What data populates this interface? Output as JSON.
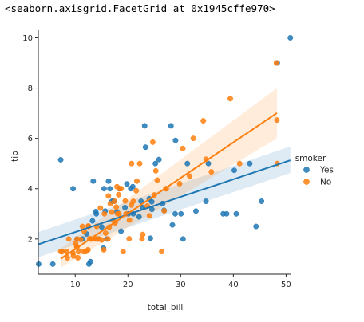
{
  "output_text": "<seaborn.axisgrid.FacetGrid at 0x1945cffe970>",
  "chart_data": {
    "type": "scatter",
    "xlabel": "total_bill",
    "ylabel": "tip",
    "xlim": [
      3,
      51
    ],
    "ylim": [
      0.6,
      10.3
    ],
    "xticks": [
      10,
      20,
      30,
      40,
      50
    ],
    "yticks": [
      2,
      4,
      6,
      8,
      10
    ],
    "grid": false,
    "legend": {
      "title": "smoker",
      "placement": "right",
      "entries": [
        "Yes",
        "No"
      ]
    },
    "colors": {
      "Yes": "#1f77b4",
      "No": "#ff7f0e"
    },
    "series": [
      {
        "name": "Yes",
        "regression": {
          "x": [
            3.07,
            50.81
          ],
          "y": [
            1.79,
            5.13
          ]
        },
        "ci": {
          "x": [
            3.07,
            50.81
          ],
          "lower": [
            1.28,
            4.62
          ],
          "upper": [
            2.28,
            5.68
          ]
        },
        "x": [
          3.07,
          5.75,
          7.25,
          9.6,
          10.34,
          11.38,
          12.16,
          12.9,
          13.28,
          13.9,
          14.0,
          14.31,
          15.02,
          15.36,
          15.69,
          16.0,
          16.58,
          16.97,
          17.31,
          17.92,
          18.69,
          19.44,
          19.81,
          20.08,
          20.53,
          21.01,
          22.12,
          22.49,
          22.76,
          23.17,
          23.33,
          24.06,
          24.27,
          24.55,
          25.21,
          25.89,
          26.86,
          28.17,
          28.44,
          29.03,
          30.06,
          30.46,
          31.27,
          32.9,
          34.81,
          35.26,
          38.07,
          38.73,
          40.17,
          40.55,
          43.11,
          44.3,
          45.35,
          48.33,
          50.81,
          16.32,
          13.42,
          12.6,
          15.48,
          28.97,
          18.35,
          20.92,
          26.59,
          24.52
        ],
        "y": [
          1.0,
          1.0,
          5.15,
          4.0,
          2.0,
          2.0,
          2.2,
          1.1,
          2.72,
          3.09,
          3.0,
          2.0,
          2.48,
          1.64,
          3.11,
          2.0,
          4.0,
          3.5,
          3.5,
          3.08,
          2.31,
          3.25,
          4.19,
          3.0,
          4.0,
          3.0,
          2.88,
          3.5,
          3.25,
          6.5,
          5.65,
          3.6,
          2.03,
          3.18,
          5.0,
          5.16,
          3.14,
          6.5,
          2.56,
          5.92,
          3.0,
          2.0,
          5.0,
          3.11,
          3.5,
          5.0,
          3.0,
          3.0,
          4.73,
          3.0,
          5.0,
          2.5,
          3.5,
          9.0,
          10.0,
          4.3,
          4.3,
          1.0,
          4.0,
          3.0,
          4.0,
          4.08,
          3.41,
          3.48
        ]
      },
      {
        "name": "No",
        "regression": {
          "x": [
            7.25,
            48.27
          ],
          "y": [
            1.21,
            7.01
          ]
        },
        "ci": {
          "x": [
            7.25,
            48.27
          ],
          "lower": [
            0.86,
            6.0
          ],
          "upper": [
            1.62,
            8.0
          ]
        },
        "x": [
          7.25,
          7.51,
          8.35,
          8.51,
          8.77,
          9.55,
          9.68,
          10.07,
          10.27,
          10.33,
          10.34,
          10.51,
          10.65,
          11.02,
          11.35,
          11.59,
          11.69,
          12.03,
          12.43,
          12.48,
          12.54,
          12.74,
          13.0,
          13.03,
          13.37,
          13.81,
          14.07,
          14.15,
          14.48,
          14.78,
          15.04,
          15.42,
          15.53,
          15.77,
          16.21,
          16.29,
          16.45,
          16.93,
          17.26,
          17.47,
          17.59,
          17.78,
          17.92,
          18.04,
          18.24,
          18.29,
          18.43,
          18.71,
          19.08,
          19.49,
          19.65,
          20.23,
          20.65,
          20.69,
          21.01,
          21.58,
          22.23,
          22.82,
          23.68,
          24.08,
          24.71,
          25.0,
          25.29,
          25.56,
          26.41,
          27.2,
          27.28,
          29.8,
          30.4,
          31.71,
          32.4,
          34.3,
          34.83,
          35.83,
          39.42,
          48.27,
          48.17,
          48.33,
          41.19,
          20.29,
          22.67,
          26.88,
          16.66,
          21.7
        ],
        "y": [
          1.5,
          1.5,
          1.5,
          1.25,
          2.0,
          1.45,
          1.32,
          1.83,
          1.71,
          1.67,
          2.0,
          1.25,
          1.5,
          1.98,
          2.5,
          1.5,
          2.31,
          1.5,
          1.57,
          2.52,
          2.5,
          2.01,
          2.0,
          2.0,
          2.0,
          2.0,
          2.5,
          2.0,
          2.0,
          3.23,
          1.96,
          1.57,
          3.0,
          2.23,
          2.0,
          3.71,
          2.47,
          3.07,
          2.74,
          3.5,
          2.64,
          3.27,
          4.08,
          3.0,
          3.76,
          3.0,
          4.0,
          4.0,
          1.5,
          3.51,
          3.0,
          2.01,
          3.35,
          5.0,
          3.5,
          3.92,
          5.0,
          2.18,
          3.31,
          2.92,
          5.85,
          3.75,
          4.71,
          4.34,
          1.5,
          4.0,
          4.0,
          4.2,
          5.6,
          4.5,
          6.0,
          6.7,
          5.17,
          4.67,
          7.58,
          6.73,
          9.0,
          5.0,
          5.0,
          2.75,
          2.0,
          3.12,
          3.4,
          4.3
        ]
      }
    ]
  }
}
